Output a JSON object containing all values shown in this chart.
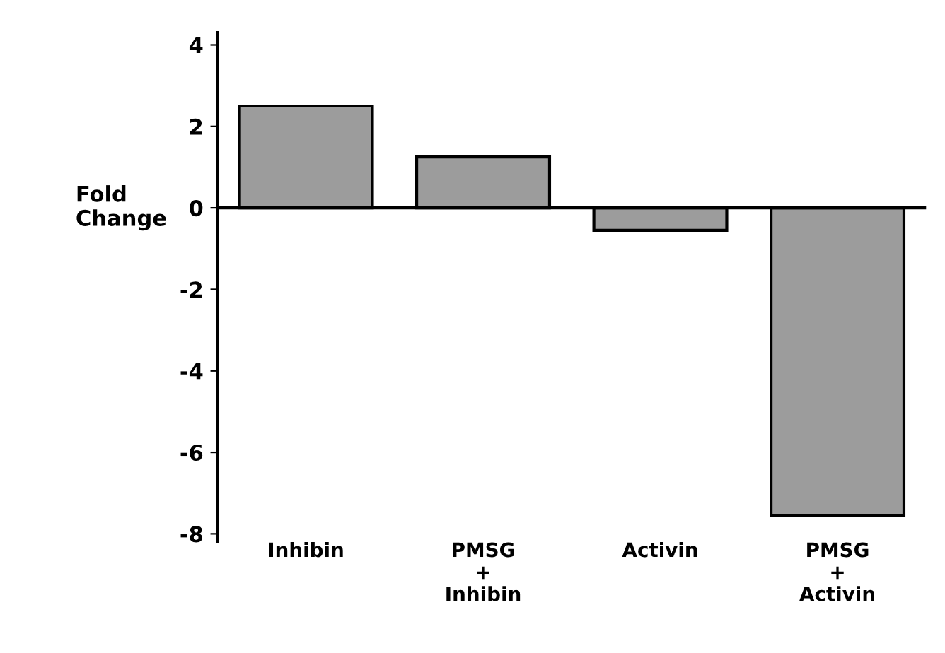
{
  "chart_data": {
    "type": "bar",
    "ylabel": "Fold\nChange",
    "categories": [
      "Inhibin",
      "PMSG\n+\nInhibin",
      "Activin",
      "PMSG\n+\nActivin"
    ],
    "values": [
      2.5,
      1.25,
      -0.55,
      -7.55
    ],
    "color": "#9c9c9c",
    "ylim": [
      -8.2,
      4.3
    ],
    "yticks": [
      4,
      2,
      0,
      -2,
      -4,
      -6,
      -8
    ]
  }
}
